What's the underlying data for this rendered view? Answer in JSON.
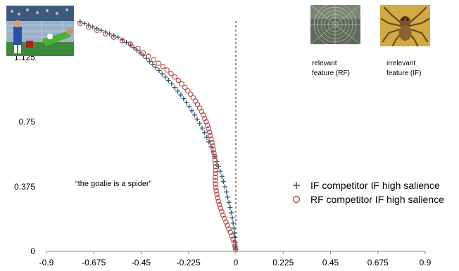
{
  "chart_data": {
    "type": "scatter",
    "xlim": [
      -0.9,
      0.9
    ],
    "ylim": [
      0,
      1.35
    ],
    "x_ticks": [
      "-0.9",
      "-0.675",
      "-0.45",
      "-0.225",
      "0",
      "0.225",
      "0.45",
      "0.675",
      "0.9"
    ],
    "y_ticks": [
      "0",
      "0.375",
      "0.75",
      "1.125"
    ],
    "grid": false,
    "legend_position": "right",
    "series": [
      {
        "name": "IF competitor IF high salience",
        "marker": "plus",
        "color": "#3d5a72",
        "points": [
          [
            -0.74,
            1.33
          ],
          [
            -0.72,
            1.32
          ],
          [
            -0.7,
            1.31
          ],
          [
            -0.68,
            1.3
          ],
          [
            -0.66,
            1.29
          ],
          [
            -0.64,
            1.28
          ],
          [
            -0.62,
            1.27
          ],
          [
            -0.6,
            1.26
          ],
          [
            -0.58,
            1.25
          ],
          [
            -0.56,
            1.24
          ],
          [
            -0.54,
            1.225
          ],
          [
            -0.52,
            1.21
          ],
          [
            -0.5,
            1.195
          ],
          [
            -0.485,
            1.18
          ],
          [
            -0.47,
            1.165
          ],
          [
            -0.455,
            1.15
          ],
          [
            -0.44,
            1.135
          ],
          [
            -0.425,
            1.118
          ],
          [
            -0.41,
            1.1
          ],
          [
            -0.395,
            1.083
          ],
          [
            -0.38,
            1.065
          ],
          [
            -0.365,
            1.047
          ],
          [
            -0.35,
            1.028
          ],
          [
            -0.335,
            1.009
          ],
          [
            -0.32,
            0.99
          ],
          [
            -0.305,
            0.97
          ],
          [
            -0.29,
            0.949
          ],
          [
            -0.276,
            0.928
          ],
          [
            -0.262,
            0.906
          ],
          [
            -0.248,
            0.884
          ],
          [
            -0.235,
            0.861
          ],
          [
            -0.222,
            0.838
          ],
          [
            -0.209,
            0.814
          ],
          [
            -0.196,
            0.79
          ],
          [
            -0.184,
            0.765
          ],
          [
            -0.172,
            0.74
          ],
          [
            -0.16,
            0.714
          ],
          [
            -0.149,
            0.688
          ],
          [
            -0.138,
            0.661
          ],
          [
            -0.128,
            0.634
          ],
          [
            -0.118,
            0.606
          ],
          [
            -0.108,
            0.578
          ],
          [
            -0.099,
            0.55
          ],
          [
            -0.09,
            0.521
          ],
          [
            -0.082,
            0.492
          ],
          [
            -0.074,
            0.463
          ],
          [
            -0.066,
            0.434
          ],
          [
            -0.059,
            0.404
          ],
          [
            -0.052,
            0.374
          ],
          [
            -0.045,
            0.344
          ],
          [
            -0.039,
            0.314
          ],
          [
            -0.033,
            0.284
          ],
          [
            -0.027,
            0.254
          ],
          [
            -0.022,
            0.224
          ],
          [
            -0.017,
            0.194
          ],
          [
            -0.013,
            0.164
          ],
          [
            -0.009,
            0.134
          ],
          [
            -0.006,
            0.106
          ],
          [
            -0.004,
            0.079
          ],
          [
            -0.002,
            0.053
          ],
          [
            -0.001,
            0.03
          ],
          [
            0.0,
            0.012
          ]
        ]
      },
      {
        "name": "RF competitor IF high salience",
        "marker": "circle",
        "color": "#b5473f",
        "points": [
          [
            -0.74,
            1.32
          ],
          [
            -0.7,
            1.3
          ],
          [
            -0.66,
            1.28
          ],
          [
            -0.62,
            1.26
          ],
          [
            -0.58,
            1.24
          ],
          [
            -0.54,
            1.22
          ],
          [
            -0.5,
            1.2
          ],
          [
            -0.465,
            1.175
          ],
          [
            -0.44,
            1.15
          ],
          [
            -0.415,
            1.13
          ],
          [
            -0.39,
            1.11
          ],
          [
            -0.368,
            1.09
          ],
          [
            -0.347,
            1.07
          ],
          [
            -0.327,
            1.05
          ],
          [
            -0.308,
            1.03
          ],
          [
            -0.29,
            1.01
          ],
          [
            -0.273,
            0.99
          ],
          [
            -0.257,
            0.97
          ],
          [
            -0.242,
            0.95
          ],
          [
            -0.228,
            0.93
          ],
          [
            -0.215,
            0.91
          ],
          [
            -0.203,
            0.89
          ],
          [
            -0.192,
            0.87
          ],
          [
            -0.182,
            0.85
          ],
          [
            -0.172,
            0.83
          ],
          [
            -0.163,
            0.81
          ],
          [
            -0.155,
            0.79
          ],
          [
            -0.148,
            0.77
          ],
          [
            -0.141,
            0.75
          ],
          [
            -0.135,
            0.73
          ],
          [
            -0.13,
            0.71
          ],
          [
            -0.125,
            0.69
          ],
          [
            -0.121,
            0.67
          ],
          [
            -0.117,
            0.65
          ],
          [
            -0.113,
            0.63
          ],
          [
            -0.11,
            0.61
          ],
          [
            -0.107,
            0.59
          ],
          [
            -0.104,
            0.57
          ],
          [
            -0.101,
            0.55
          ],
          [
            -0.099,
            0.53
          ],
          [
            -0.097,
            0.51
          ],
          [
            -0.096,
            0.49
          ],
          [
            -0.096,
            0.47
          ],
          [
            -0.097,
            0.45
          ],
          [
            -0.098,
            0.43
          ],
          [
            -0.098,
            0.41
          ],
          [
            -0.097,
            0.39
          ],
          [
            -0.095,
            0.37
          ],
          [
            -0.093,
            0.35
          ],
          [
            -0.09,
            0.33
          ],
          [
            -0.087,
            0.31
          ],
          [
            -0.083,
            0.29
          ],
          [
            -0.078,
            0.27
          ],
          [
            -0.073,
            0.25
          ],
          [
            -0.067,
            0.23
          ],
          [
            -0.061,
            0.21
          ],
          [
            -0.054,
            0.19
          ],
          [
            -0.047,
            0.17
          ],
          [
            -0.04,
            0.15
          ],
          [
            -0.033,
            0.13
          ],
          [
            -0.026,
            0.11
          ],
          [
            -0.019,
            0.09
          ],
          [
            -0.013,
            0.07
          ],
          [
            -0.008,
            0.05
          ],
          [
            -0.004,
            0.03
          ],
          [
            -0.001,
            0.012
          ]
        ]
      }
    ],
    "annotations": {
      "quote": "“the goalie is a spider”",
      "relevant_caption": [
        "relevant",
        "feature (RF)"
      ],
      "irrelevant_caption": [
        "irrelevant",
        "feature (IF)"
      ]
    }
  },
  "images": {
    "soccer": "goalkeeper-save-photo",
    "web": "spider-web-photo",
    "spider": "spider-photo"
  }
}
